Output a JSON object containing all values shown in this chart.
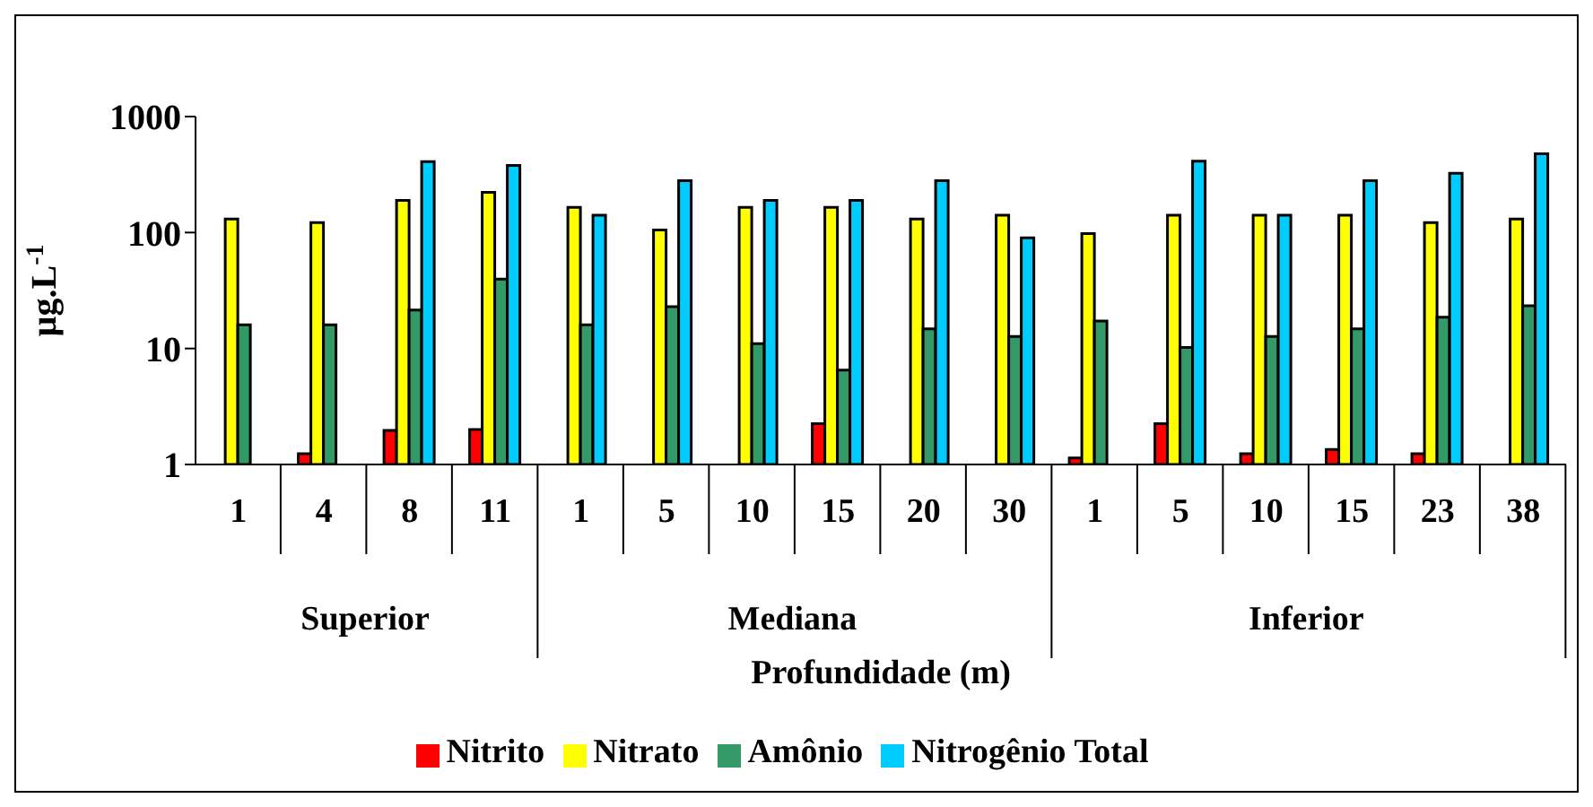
{
  "chart_data": {
    "type": "bar",
    "xlabel": "Profundidade (m)",
    "ylabel": "µg.L$^{-1}$",
    "categories": [
      "1",
      "4",
      "8",
      "11",
      "1",
      "5",
      "10",
      "15",
      "20",
      "30",
      "1",
      "5",
      "10",
      "15",
      "23",
      "38"
    ],
    "annotations": [
      "Superior",
      "Mediana",
      "Inferior"
    ],
    "series": [
      {
        "name": "Nitrito",
        "color": "#ff0000",
        "values": [
          null,
          1.24,
          1.97,
          2.0,
          null,
          null,
          null,
          2.25,
          null,
          null,
          1.14,
          2.25,
          1.24,
          1.35,
          1.24,
          null
        ]
      },
      {
        "name": "Nitrato",
        "color": "#ffff00",
        "values": [
          131,
          122,
          189,
          222,
          165,
          105,
          165,
          165,
          131,
          141,
          98,
          141,
          141,
          141,
          122,
          131
        ]
      },
      {
        "name": "Amônio",
        "color": "#339966",
        "values": [
          16,
          16,
          21.5,
          39.6,
          16,
          23,
          11,
          6.5,
          14.8,
          12.7,
          17.3,
          10.2,
          12.7,
          14.8,
          18.6,
          23.4
        ]
      },
      {
        "name": "Nitrogênio Total",
        "color": "#00ccff",
        "values": [
          null,
          null,
          408,
          379,
          141,
          280,
          189,
          189,
          280,
          90,
          null,
          413,
          141,
          280,
          325,
          478
        ]
      }
    ],
    "log": true,
    "ylim": [
      1,
      1000
    ],
    "yticks": [
      1,
      10,
      100,
      1000
    ],
    "legend": "bottom"
  }
}
